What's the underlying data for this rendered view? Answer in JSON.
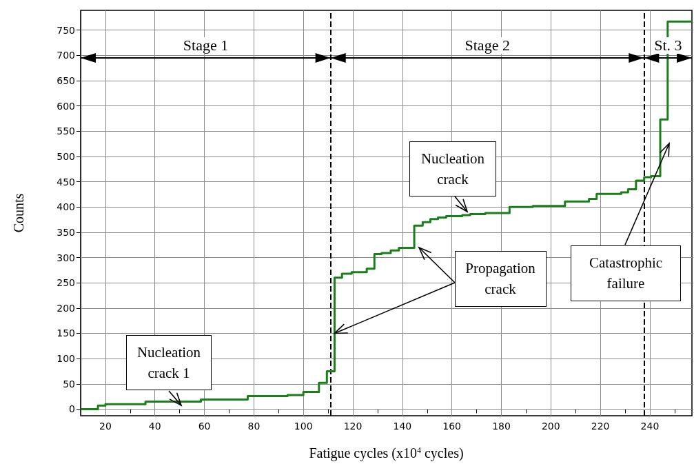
{
  "chart_data": {
    "type": "step",
    "xlabel": "Fatigue cycles (x10$^{4}$ cycles)",
    "ylabel": "Counts",
    "color": "#1a7f1a",
    "marker": "none",
    "grid": true,
    "x": [
      10,
      17,
      20,
      36.2,
      58.6,
      77.5,
      93.6,
      100,
      106.3,
      109.5,
      112.6,
      115.6,
      119.5,
      125.6,
      128.7,
      131.6,
      135.3,
      138.6,
      144.8,
      148.2,
      151.3,
      154.4,
      157.7,
      164.2,
      167.4,
      173.5,
      183.3,
      192.7,
      205.7,
      215.4,
      218.5,
      228.4,
      231.2,
      234.4,
      237.7,
      240.5,
      244.2,
      247.2,
      257
    ],
    "values": [
      0,
      7,
      10,
      15,
      19,
      26,
      28,
      34,
      52,
      75,
      260,
      268,
      271,
      278,
      307,
      309,
      314,
      319,
      363,
      370,
      376,
      379,
      382,
      384,
      386,
      388,
      400,
      402,
      411,
      416,
      426,
      429,
      435,
      452,
      459,
      461,
      573,
      767,
      767
    ],
    "xlim": [
      10,
      257
    ],
    "xticks": [
      20,
      {
        "value": 30,
        "label": null
      },
      40,
      {
        "value": 50,
        "label": null
      },
      60,
      {
        "value": 70,
        "label": null
      },
      80,
      {
        "value": 90,
        "label": null
      },
      100,
      {
        "value": 110,
        "label": null
      },
      120,
      {
        "value": 130,
        "label": null
      },
      140,
      {
        "value": 150,
        "label": null
      },
      160,
      {
        "value": 170,
        "label": null
      },
      180,
      {
        "value": 190,
        "label": null
      },
      200,
      {
        "value": 210,
        "label": null
      },
      220,
      {
        "value": 230,
        "label": null
      },
      240,
      {
        "value": 250,
        "label": null
      }
    ],
    "ylim": [
      -13,
      789
    ],
    "yticks": [
      0,
      50,
      100,
      150,
      200,
      250,
      300,
      350,
      400,
      450,
      500,
      550,
      600,
      650,
      700,
      750
    ],
    "ref_lines": [
      {
        "axis": "x",
        "value": 111,
        "line_style": "dashed",
        "color": "#000000"
      },
      {
        "axis": "x",
        "value": 237.6,
        "line_style": "dashed",
        "color": "#000000"
      }
    ],
    "annotations": [
      "Stage 1",
      "Stage 2",
      "St. 3",
      "Nucleation crack 1",
      "Nucleation crack",
      {
        "text": "Propagation crack",
        "x": 112.6,
        "y": 150
      },
      "Catastrophic failure"
    ]
  }
}
